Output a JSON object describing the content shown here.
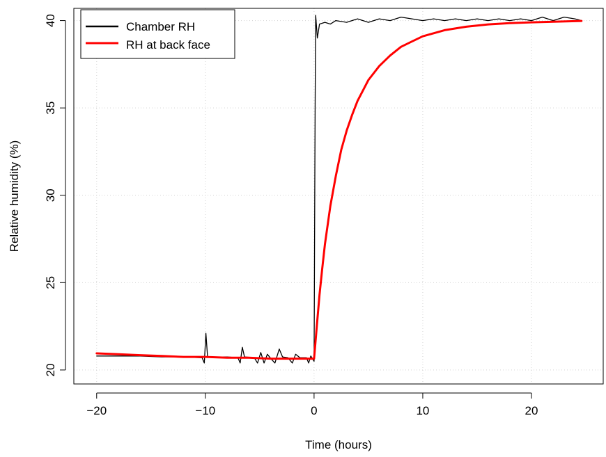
{
  "chart_data": {
    "type": "line",
    "title": "",
    "xlabel": "Time (hours)",
    "ylabel": "Relative humidity (%)",
    "xlim": [
      -22.1,
      26.6
    ],
    "ylim": [
      19.2,
      40.7
    ],
    "xticks": [
      -20,
      -10,
      0,
      10,
      20
    ],
    "yticks": [
      20,
      25,
      30,
      35,
      40
    ],
    "xtick_labels": [
      "−20",
      "−10",
      "0",
      "10",
      "20"
    ],
    "ytick_labels": [
      "20",
      "25",
      "30",
      "35",
      "40"
    ],
    "grid": true,
    "legend_position": "top-left",
    "series": [
      {
        "name": "Chamber RH",
        "color": "#000000",
        "points": [
          [
            -20,
            20.8
          ],
          [
            -18,
            20.8
          ],
          [
            -16,
            20.8
          ],
          [
            -14,
            20.75
          ],
          [
            -12,
            20.75
          ],
          [
            -10.3,
            20.7
          ],
          [
            -10.1,
            20.4
          ],
          [
            -9.95,
            22.1
          ],
          [
            -9.8,
            20.75
          ],
          [
            -8,
            20.75
          ],
          [
            -7,
            20.7
          ],
          [
            -6.8,
            20.4
          ],
          [
            -6.6,
            21.3
          ],
          [
            -6.4,
            20.75
          ],
          [
            -5.5,
            20.7
          ],
          [
            -5.2,
            20.4
          ],
          [
            -4.9,
            21.0
          ],
          [
            -4.6,
            20.4
          ],
          [
            -4.3,
            20.9
          ],
          [
            -3.9,
            20.6
          ],
          [
            -3.6,
            20.4
          ],
          [
            -3.2,
            21.2
          ],
          [
            -2.9,
            20.75
          ],
          [
            -2.4,
            20.7
          ],
          [
            -2.0,
            20.4
          ],
          [
            -1.7,
            20.9
          ],
          [
            -1.3,
            20.7
          ],
          [
            -0.7,
            20.7
          ],
          [
            -0.5,
            20.4
          ],
          [
            -0.3,
            20.8
          ],
          [
            0.0,
            20.5
          ],
          [
            0.1,
            35.0
          ],
          [
            0.15,
            40.3
          ],
          [
            0.3,
            39.0
          ],
          [
            0.5,
            39.8
          ],
          [
            1,
            39.9
          ],
          [
            1.5,
            39.8
          ],
          [
            2,
            40.0
          ],
          [
            3,
            39.9
          ],
          [
            4,
            40.1
          ],
          [
            5,
            39.9
          ],
          [
            6,
            40.1
          ],
          [
            7,
            40.0
          ],
          [
            8,
            40.2
          ],
          [
            9,
            40.1
          ],
          [
            10,
            40.0
          ],
          [
            11,
            40.1
          ],
          [
            12,
            40.0
          ],
          [
            13,
            40.1
          ],
          [
            14,
            40.0
          ],
          [
            15,
            40.1
          ],
          [
            16,
            40.0
          ],
          [
            17,
            40.1
          ],
          [
            18,
            40.0
          ],
          [
            19,
            40.1
          ],
          [
            20,
            40.0
          ],
          [
            21,
            40.2
          ],
          [
            22,
            40.0
          ],
          [
            23,
            40.2
          ],
          [
            24,
            40.1
          ],
          [
            24.6,
            40.0
          ]
        ]
      },
      {
        "name": "RH at back face",
        "color": "#ff0000",
        "points": [
          [
            -20,
            20.95
          ],
          [
            -18,
            20.9
          ],
          [
            -16,
            20.85
          ],
          [
            -14,
            20.8
          ],
          [
            -12,
            20.75
          ],
          [
            -10,
            20.75
          ],
          [
            -8,
            20.7
          ],
          [
            -6,
            20.7
          ],
          [
            -4,
            20.65
          ],
          [
            -2,
            20.65
          ],
          [
            0,
            20.65
          ],
          [
            0.25,
            22.5
          ],
          [
            0.5,
            24.3
          ],
          [
            0.75,
            25.8
          ],
          [
            1,
            27.2
          ],
          [
            1.5,
            29.4
          ],
          [
            2,
            31.1
          ],
          [
            2.5,
            32.6
          ],
          [
            3,
            33.7
          ],
          [
            3.5,
            34.6
          ],
          [
            4,
            35.4
          ],
          [
            5,
            36.6
          ],
          [
            6,
            37.4
          ],
          [
            7,
            38.0
          ],
          [
            8,
            38.5
          ],
          [
            9,
            38.8
          ],
          [
            10,
            39.1
          ],
          [
            12,
            39.45
          ],
          [
            14,
            39.65
          ],
          [
            16,
            39.78
          ],
          [
            18,
            39.85
          ],
          [
            20,
            39.9
          ],
          [
            22,
            39.93
          ],
          [
            24.6,
            39.98
          ]
        ]
      }
    ]
  }
}
